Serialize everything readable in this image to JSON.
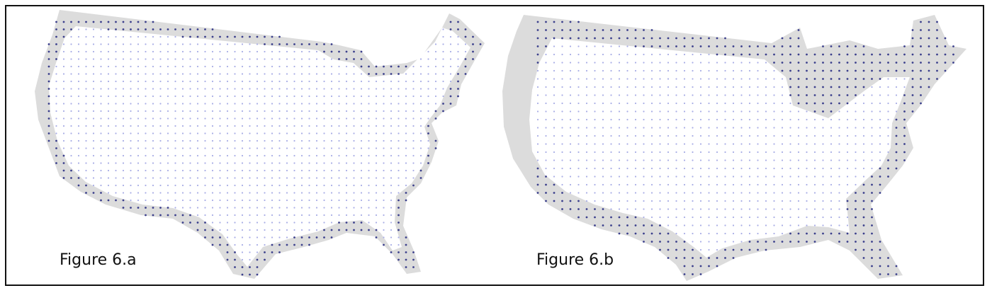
{
  "figures": [
    {
      "id": "a",
      "caption": "Figure 6.a",
      "buffer_style": "narrow"
    },
    {
      "id": "b",
      "caption": "Figure 6.b",
      "buffer_style": "wide"
    }
  ],
  "colors": {
    "buffer": "#dcdcdc",
    "interior_dot": "#a9aee6",
    "edge_dot": "#3b3f8c",
    "frame": "#111111"
  }
}
